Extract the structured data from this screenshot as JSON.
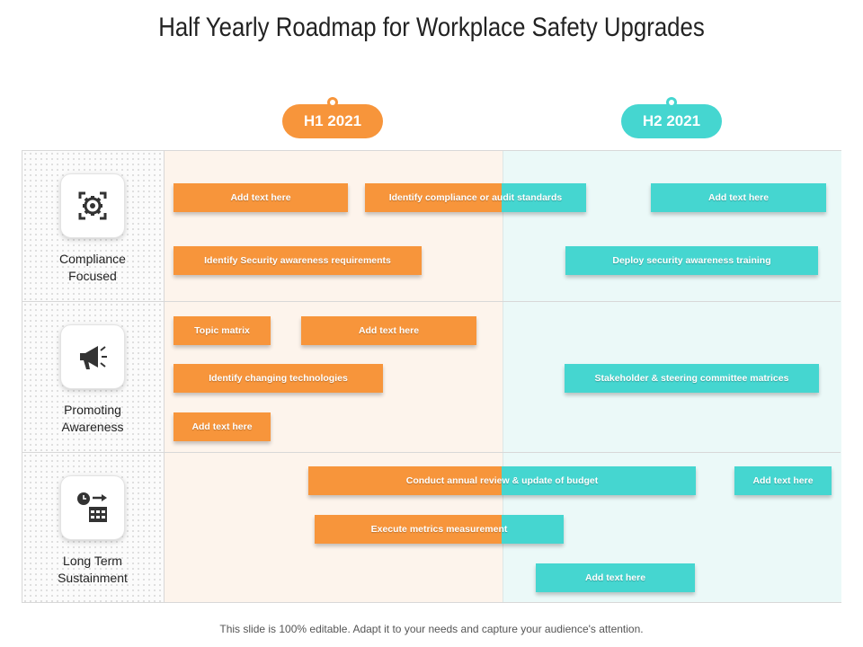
{
  "title": "Half Yearly Roadmap for Workplace Safety Upgrades",
  "periods": [
    "H1 2021",
    "H2 2021"
  ],
  "rows": [
    {
      "label_line1": "Compliance",
      "label_line2": "Focused",
      "icon": "gear-icon"
    },
    {
      "label_line1": "Promoting",
      "label_line2": "Awareness",
      "icon": "megaphone-icon"
    },
    {
      "label_line1": "Long Term",
      "label_line2": "Sustainment",
      "icon": "calendar-clock-icon"
    }
  ],
  "tasks": {
    "r1_a": "Add text here",
    "r1_b": "Identify compliance or audit standards",
    "r1_c": "Add text here",
    "r1_d": "Identify Security awareness requirements",
    "r1_e": "Deploy security awareness training",
    "r2_a": "Topic matrix",
    "r2_b": "Add text here",
    "r2_c": "Identify changing technologies",
    "r2_d": "Stakeholder & steering committee matrices",
    "r2_e": "Add text here",
    "r3_a": "Conduct annual review & update of budget",
    "r3_b": "Add text here",
    "r3_c": "Execute metrics measurement",
    "r3_d": "Add text here"
  },
  "colors": {
    "h1": "#f7953b",
    "h2": "#45d6d0"
  },
  "footer": "This slide is 100% editable. Adapt it to your needs and capture your audience's attention."
}
